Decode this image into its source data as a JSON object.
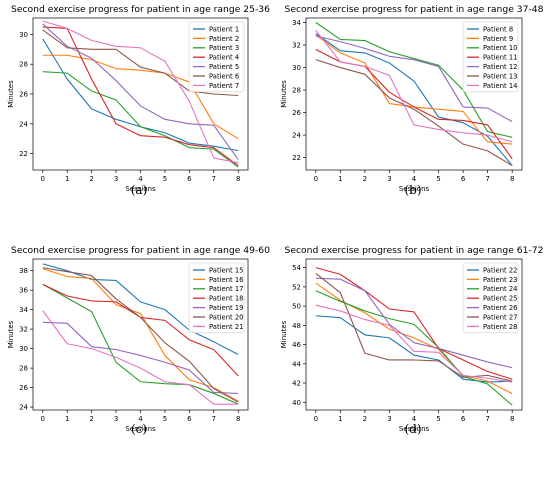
{
  "colors": [
    "#1f77b4",
    "#ff7f0e",
    "#2ca02c",
    "#d62728",
    "#9467bd",
    "#8c564b",
    "#e377c2"
  ],
  "chart_data": [
    {
      "type": "line",
      "caption": "(a)",
      "title": "Second exercise progress for patient in age range 25-36",
      "xlabel": "Sessions",
      "ylabel": "Minutes",
      "x": [
        0,
        1,
        2,
        3,
        4,
        5,
        6,
        7,
        8
      ],
      "xlim": [
        -0.4,
        8.4
      ],
      "ylim": [
        20.9,
        31.1
      ],
      "yticks": [
        22,
        24,
        26,
        28,
        30
      ],
      "legend": "top-right",
      "series": [
        {
          "name": "Patient 1",
          "values": [
            29.7,
            27.0,
            25.0,
            24.3,
            23.8,
            23.4,
            22.7,
            22.5,
            22.2
          ]
        },
        {
          "name": "Patient 2",
          "values": [
            28.6,
            28.6,
            28.3,
            27.7,
            27.6,
            27.4,
            26.8,
            24.0,
            23.0
          ]
        },
        {
          "name": "Patient 3",
          "values": [
            27.5,
            27.4,
            26.2,
            25.6,
            23.8,
            23.2,
            22.4,
            22.3,
            21.1
          ]
        },
        {
          "name": "Patient 4",
          "values": [
            30.5,
            30.4,
            27.0,
            24.0,
            23.2,
            23.1,
            22.6,
            22.4,
            21.2
          ]
        },
        {
          "name": "Patient 5",
          "values": [
            30.7,
            29.2,
            28.4,
            26.9,
            25.2,
            24.3,
            24.0,
            23.9,
            21.6
          ]
        },
        {
          "name": "Patient 6",
          "values": [
            30.3,
            29.1,
            29.0,
            29.0,
            27.8,
            27.4,
            26.2,
            26.0,
            25.9
          ]
        },
        {
          "name": "Patient 7",
          "values": [
            30.9,
            30.4,
            29.6,
            29.2,
            29.1,
            28.2,
            25.5,
            21.7,
            21.4
          ]
        }
      ]
    },
    {
      "type": "line",
      "caption": "(b)",
      "title": "Second exercise progress for patient in age range 37-48",
      "xlabel": "Sessions",
      "ylabel": "Minutes",
      "x": [
        0,
        1,
        2,
        3,
        4,
        5,
        6,
        7,
        8
      ],
      "xlim": [
        -0.4,
        8.4
      ],
      "ylim": [
        20.9,
        34.4
      ],
      "yticks": [
        22,
        24,
        26,
        28,
        30,
        32,
        34
      ],
      "legend": "top-right",
      "series": [
        {
          "name": "Patient 8",
          "values": [
            33.0,
            31.5,
            31.3,
            30.4,
            28.8,
            25.6,
            25.1,
            23.9,
            21.3
          ]
        },
        {
          "name": "Patient 9",
          "values": [
            32.9,
            31.3,
            30.4,
            26.8,
            26.5,
            26.3,
            26.1,
            23.4,
            23.2
          ]
        },
        {
          "name": "Patient 10",
          "values": [
            34.0,
            32.5,
            32.4,
            31.4,
            30.8,
            30.2,
            28.0,
            24.3,
            23.8
          ]
        },
        {
          "name": "Patient 11",
          "values": [
            31.6,
            30.5,
            30.1,
            27.8,
            26.5,
            25.4,
            25.3,
            24.9,
            21.9
          ]
        },
        {
          "name": "Patient 12",
          "values": [
            32.8,
            32.3,
            31.7,
            31.0,
            30.7,
            30.1,
            26.5,
            26.4,
            25.2
          ]
        },
        {
          "name": "Patient 13",
          "values": [
            30.7,
            30.0,
            29.4,
            27.3,
            26.3,
            24.8,
            23.2,
            22.6,
            21.3
          ]
        },
        {
          "name": "Patient 14",
          "values": [
            33.3,
            30.5,
            30.1,
            29.3,
            24.9,
            24.5,
            24.2,
            24.0,
            23.4
          ]
        }
      ]
    },
    {
      "type": "line",
      "caption": "(c)",
      "title": "Second exercise progress for patient in age range 49-60",
      "xlabel": "Sessions",
      "ylabel": "Minutes",
      "x": [
        0,
        1,
        2,
        3,
        4,
        5,
        6,
        7,
        8
      ],
      "xlim": [
        -0.4,
        8.4
      ],
      "ylim": [
        23.7,
        39.2
      ],
      "yticks": [
        24,
        26,
        28,
        30,
        32,
        34,
        36,
        38
      ],
      "legend": "top-right",
      "series": [
        {
          "name": "Patient 15",
          "values": [
            38.7,
            38.0,
            37.1,
            37.0,
            34.8,
            34.0,
            31.9,
            30.7,
            29.4
          ]
        },
        {
          "name": "Patient 16",
          "values": [
            38.2,
            37.4,
            37.2,
            34.5,
            33.6,
            29.3,
            26.8,
            26.0,
            24.6
          ]
        },
        {
          "name": "Patient 17",
          "values": [
            36.6,
            35.2,
            33.8,
            28.6,
            26.6,
            26.4,
            26.3,
            25.4,
            24.3
          ]
        },
        {
          "name": "Patient 18",
          "values": [
            36.6,
            35.4,
            34.9,
            34.8,
            33.2,
            32.9,
            30.9,
            29.9,
            27.2
          ]
        },
        {
          "name": "Patient 19",
          "values": [
            32.7,
            32.6,
            30.2,
            29.9,
            29.3,
            28.6,
            27.8,
            25.5,
            25.4
          ]
        },
        {
          "name": "Patient 20",
          "values": [
            38.3,
            37.9,
            37.5,
            35.1,
            33.2,
            30.6,
            28.7,
            25.9,
            24.5
          ]
        },
        {
          "name": "Patient 21",
          "values": [
            33.9,
            30.5,
            30.0,
            29.1,
            28.0,
            26.6,
            26.3,
            24.3,
            24.3
          ]
        }
      ]
    },
    {
      "type": "line",
      "caption": "(d)",
      "title": "Second exercise progress for patient in age range 61-72",
      "xlabel": "Sessions",
      "ylabel": "Minutes",
      "x": [
        0,
        1,
        2,
        3,
        4,
        5,
        6,
        7,
        8
      ],
      "xlim": [
        -0.4,
        8.4
      ],
      "ylim": [
        39.2,
        54.9
      ],
      "yticks": [
        40,
        42,
        44,
        46,
        48,
        50,
        52,
        54
      ],
      "legend": "top-right",
      "series": [
        {
          "name": "Patient 22",
          "values": [
            49.0,
            48.8,
            47.0,
            46.7,
            44.9,
            44.4,
            42.4,
            42.1,
            42.2
          ]
        },
        {
          "name": "Patient 23",
          "values": [
            52.4,
            50.6,
            49.3,
            47.6,
            46.7,
            45.5,
            42.8,
            42.2,
            40.9
          ]
        },
        {
          "name": "Patient 24",
          "values": [
            51.6,
            50.5,
            49.5,
            48.7,
            48.1,
            45.7,
            42.7,
            41.9,
            39.7
          ]
        },
        {
          "name": "Patient 25",
          "values": [
            54.0,
            53.3,
            51.6,
            49.7,
            49.4,
            45.6,
            44.4,
            43.2,
            42.4
          ]
        },
        {
          "name": "Patient 26",
          "values": [
            52.9,
            52.8,
            51.6,
            48.1,
            46.2,
            45.6,
            44.9,
            44.2,
            43.6
          ]
        },
        {
          "name": "Patient 27",
          "values": [
            53.4,
            51.4,
            45.1,
            44.4,
            44.4,
            44.3,
            42.6,
            42.8,
            42.2
          ]
        },
        {
          "name": "Patient 28",
          "values": [
            50.1,
            49.5,
            48.6,
            48.0,
            45.3,
            45.2,
            42.8,
            42.5,
            42.1
          ]
        }
      ]
    }
  ]
}
